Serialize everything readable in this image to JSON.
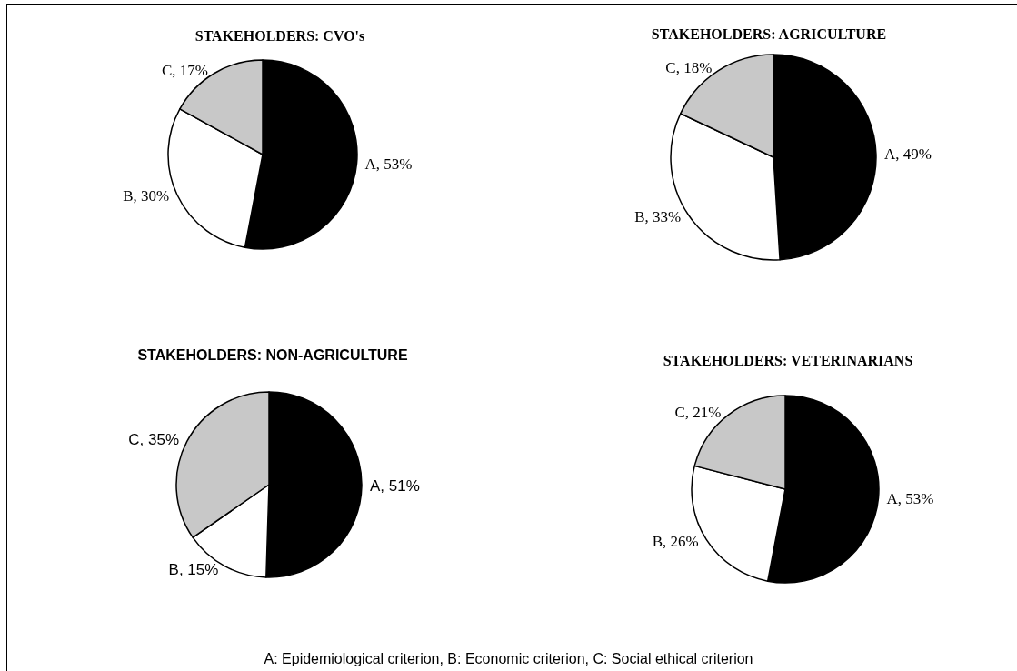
{
  "chart_data": [
    {
      "type": "pie",
      "title": "STAKEHOLDERS: CVO's",
      "categories": [
        "A",
        "B",
        "C"
      ],
      "values": [
        53,
        30,
        17
      ],
      "colors": [
        "#000000",
        "#ffffff",
        "#c8c8c8"
      ],
      "value_labels": [
        "53%",
        "30%",
        "17%"
      ],
      "legend": false
    },
    {
      "type": "pie",
      "title": "STAKEHOLDERS: AGRICULTURE",
      "categories": [
        "A",
        "B",
        "C"
      ],
      "values": [
        49,
        33,
        18
      ],
      "colors": [
        "#000000",
        "#ffffff",
        "#c8c8c8"
      ],
      "value_labels": [
        "49%",
        "33%",
        "18%"
      ],
      "legend": false
    },
    {
      "type": "pie",
      "title": "STAKEHOLDERS: NON-AGRICULTURE",
      "categories": [
        "A",
        "B",
        "C"
      ],
      "values": [
        51,
        15,
        35
      ],
      "colors": [
        "#000000",
        "#ffffff",
        "#c8c8c8"
      ],
      "value_labels": [
        "51%",
        "15%",
        "35%"
      ],
      "legend": false
    },
    {
      "type": "pie",
      "title": "STAKEHOLDERS: VETERINARIANS",
      "categories": [
        "A",
        "B",
        "C"
      ],
      "values": [
        53,
        26,
        21
      ],
      "colors": [
        "#000000",
        "#ffffff",
        "#c8c8c8"
      ],
      "value_labels": [
        "53%",
        "26%",
        "21%"
      ],
      "legend": false,
      "annotations": [
        "A: Epidemiological criterion, B: Economic criterion, C: Social ethical criterion"
      ]
    }
  ]
}
